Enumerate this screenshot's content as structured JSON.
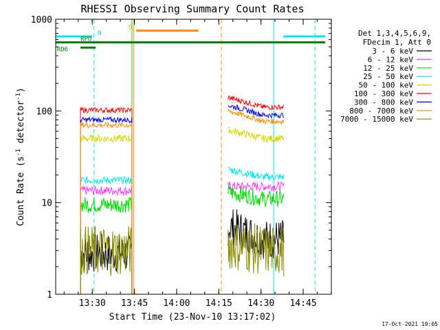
{
  "chart_data": {
    "type": "line",
    "title": "RHESSI Observing Summary Count Rates",
    "xlabel": "Start Time (23-Nov-10 13:17:02)",
    "ylabel": "Count Rate (s⁻¹ detector⁻¹)",
    "ylabel_parts": {
      "main": "Count Rate (s",
      "sup1": "-1",
      "mid": " detector",
      "sup2": "-1",
      "end": ")"
    },
    "y_scale": "log",
    "ylim": [
      1,
      1000
    ],
    "xlim_minutes": [
      13.283,
      14.917
    ],
    "x_tick_labels": [
      "13:30",
      "13:45",
      "14:00",
      "14:15",
      "14:30",
      "14:45"
    ],
    "x_ticks_hours": [
      13.5,
      13.75,
      14.0,
      14.25,
      14.5,
      14.75
    ],
    "y_tick_labels": [
      "1",
      "10",
      "100",
      "1000"
    ],
    "y_ticks": [
      1,
      10,
      100,
      1000
    ],
    "legend_header": [
      "Det 1,3,4,5,6,9,",
      "FDecim 1, Att 0"
    ],
    "legend_position": "right",
    "timestamp": "17-Oct-2021 10:05",
    "segments_hours": [
      [
        13.43,
        13.735
      ],
      [
        14.305,
        14.635
      ]
    ],
    "series": [
      {
        "name": "3 - 6 keV",
        "color": "#000000",
        "seg1": 2.8,
        "seg2": [
          5.5,
          4.0
        ],
        "noise": 0.22
      },
      {
        "name": "6 - 12 keV",
        "color": "#ff3aff",
        "seg1": 13.5,
        "seg2": [
          15.0,
          15.0
        ],
        "noise": 0.05
      },
      {
        "name": "12 - 25 keV",
        "color": "#00dd00",
        "seg1": 9.5,
        "seg2": [
          13.0,
          11.0
        ],
        "noise": 0.09
      },
      {
        "name": "25 - 50 keV",
        "color": "#00e8e8",
        "seg1": 17.5,
        "seg2": [
          23.0,
          19.0
        ],
        "noise": 0.04
      },
      {
        "name": "50 - 100 keV",
        "color": "#d8d800",
        "seg1": 50.0,
        "seg2": [
          62.0,
          50.0
        ],
        "noise": 0.04
      },
      {
        "name": "100 - 300 keV",
        "color": "#ff0000",
        "seg1": 102,
        "seg2": [
          140,
          110
        ],
        "noise": 0.03
      },
      {
        "name": "300 - 800 keV",
        "color": "#0000ff",
        "seg1": 80,
        "seg2": [
          115,
          90
        ],
        "noise": 0.03
      },
      {
        "name": "800 - 7000 keV",
        "color": "#ff8c00",
        "seg1": 70,
        "seg2": [
          100,
          77
        ],
        "noise": 0.03
      },
      {
        "name": "7000 - 15000 keV",
        "color": "#8b8b00",
        "seg1": 3.0,
        "seg2": [
          3.5,
          3.0
        ],
        "noise": 0.28
      }
    ],
    "flags": [
      {
        "label": "N",
        "color": "#00e8e8",
        "level": 650,
        "ranges": [
          [
            13.283,
            13.5
          ],
          [
            14.633,
            14.88
          ]
        ]
      },
      {
        "label": "S",
        "color": "#ff8c00",
        "level": 750,
        "ranges": [
          [
            13.76,
            14.13
          ]
        ]
      },
      {
        "label": "RPO",
        "color": "#008000",
        "level": 560,
        "ranges": [
          [
            13.283,
            14.88
          ]
        ]
      },
      {
        "label": "RD6",
        "color": "#008000",
        "level": 490,
        "ranges": [
          [
            13.43,
            13.52
          ]
        ]
      }
    ],
    "vlines": [
      {
        "hour": 13.283,
        "color": "#00e8e8",
        "style": "solid"
      },
      {
        "hour": 13.51,
        "color": "#00e8e8",
        "style": "dashed"
      },
      {
        "hour": 13.735,
        "color": "#00dd00",
        "style": "solid"
      },
      {
        "hour": 13.745,
        "color": "#ff8c00",
        "style": "solid"
      },
      {
        "hour": 14.265,
        "color": "#ff8c00",
        "style": "dashed"
      },
      {
        "hour": 14.575,
        "color": "#00e8e8",
        "style": "solid"
      },
      {
        "hour": 14.82,
        "color": "#00e8e8",
        "style": "dashed"
      }
    ]
  }
}
